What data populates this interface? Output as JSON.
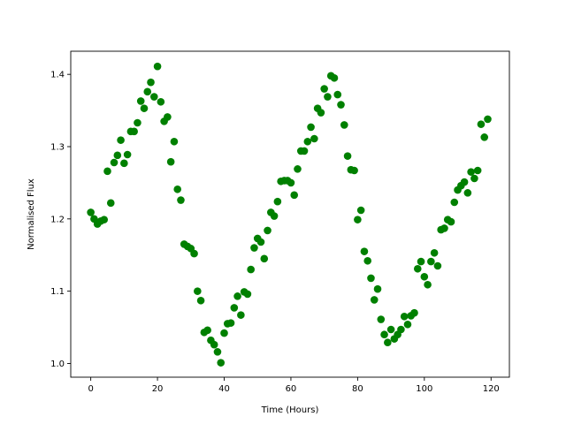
{
  "chart_data": {
    "type": "scatter",
    "title": "",
    "xlabel": "Time (Hours)",
    "ylabel": "Normalised Flux",
    "xlim": [
      -6,
      125.5
    ],
    "ylim": [
      0.981,
      1.432
    ],
    "xticks": [
      0,
      20,
      40,
      60,
      80,
      100,
      120
    ],
    "yticks": [
      1.0,
      1.1,
      1.2,
      1.3,
      1.4
    ],
    "xtick_labels": [
      "0",
      "20",
      "40",
      "60",
      "80",
      "100",
      "120"
    ],
    "ytick_labels": [
      "1.0",
      "1.1",
      "1.2",
      "1.3",
      "1.4"
    ],
    "grid": false,
    "marker_color": "#008000",
    "series": [
      {
        "x": [
          0,
          1,
          2,
          3,
          4,
          5,
          6,
          7,
          8,
          9,
          10,
          11,
          12,
          13,
          14,
          15,
          16,
          17,
          18,
          19,
          20,
          21,
          22,
          23,
          24,
          25,
          26,
          27,
          28,
          29,
          30,
          31,
          32,
          33,
          34,
          35,
          36,
          37,
          38,
          39,
          40,
          41,
          42,
          43,
          44,
          45,
          46,
          47,
          48,
          49,
          50,
          51,
          52,
          53,
          54,
          55,
          56,
          57,
          58,
          59,
          60,
          61,
          62,
          63,
          64,
          65,
          66,
          67,
          68,
          69,
          70,
          71,
          72,
          73,
          74,
          75,
          76,
          77,
          78,
          79,
          80,
          81,
          82,
          83,
          84,
          85,
          86,
          87,
          88,
          89,
          90,
          91,
          92,
          93,
          94,
          95,
          96,
          97,
          98,
          99,
          100,
          101,
          102,
          103,
          104,
          105,
          106,
          107,
          108,
          109,
          110,
          111,
          112,
          113,
          114,
          115,
          116,
          117,
          118,
          119
        ],
        "y": [
          1.209,
          1.2,
          1.193,
          1.197,
          1.199,
          1.266,
          1.222,
          1.278,
          1.288,
          1.309,
          1.277,
          1.289,
          1.321,
          1.321,
          1.333,
          1.363,
          1.353,
          1.376,
          1.389,
          1.369,
          1.411,
          1.362,
          1.335,
          1.341,
          1.279,
          1.307,
          1.241,
          1.226,
          1.165,
          1.162,
          1.159,
          1.152,
          1.1,
          1.087,
          1.043,
          1.046,
          1.032,
          1.026,
          1.016,
          1.001,
          1.042,
          1.055,
          1.056,
          1.077,
          1.093,
          1.067,
          1.099,
          1.096,
          1.13,
          1.16,
          1.173,
          1.168,
          1.145,
          1.184,
          1.209,
          1.204,
          1.224,
          1.252,
          1.253,
          1.253,
          1.25,
          1.233,
          1.269,
          1.294,
          1.294,
          1.307,
          1.327,
          1.311,
          1.353,
          1.347,
          1.38,
          1.369,
          1.398,
          1.395,
          1.372,
          1.358,
          1.33,
          1.287,
          1.268,
          1.267,
          1.199,
          1.212,
          1.155,
          1.142,
          1.118,
          1.088,
          1.103,
          1.061,
          1.04,
          1.029,
          1.047,
          1.034,
          1.04,
          1.047,
          1.065,
          1.054,
          1.066,
          1.07,
          1.131,
          1.141,
          1.12,
          1.109,
          1.141,
          1.153,
          1.135,
          1.185,
          1.187,
          1.199,
          1.196,
          1.223,
          1.24,
          1.246,
          1.251,
          1.236,
          1.265,
          1.256,
          1.267,
          1.331,
          1.313,
          1.338
        ]
      }
    ]
  }
}
